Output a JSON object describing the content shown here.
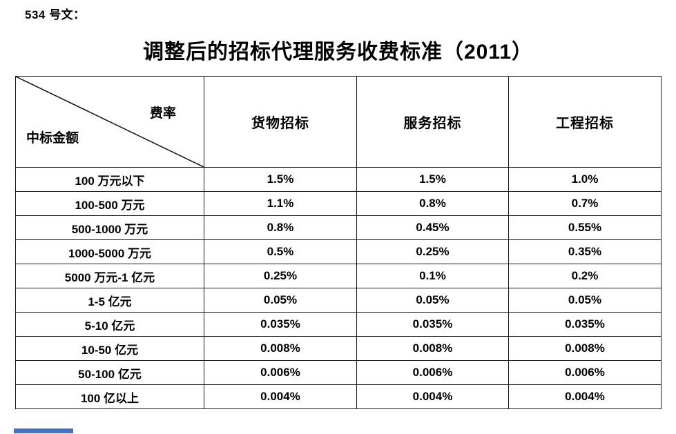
{
  "document": {
    "doc_number_label": "534 号文：",
    "title": "调整后的招标代理服务收费标准（2011）"
  },
  "table": {
    "corner": {
      "top_right": "费率",
      "bottom_left": "中标金额"
    },
    "columns": [
      "货物招标",
      "服务招标",
      "工程招标"
    ],
    "rows": [
      {
        "amount": "100 万元以下",
        "values": [
          "1.5%",
          "1.5%",
          "1.0%"
        ]
      },
      {
        "amount": "100-500 万元",
        "values": [
          "1.1%",
          "0.8%",
          "0.7%"
        ]
      },
      {
        "amount": "500-1000 万元",
        "values": [
          "0.8%",
          "0.45%",
          "0.55%"
        ]
      },
      {
        "amount": "1000-5000 万元",
        "values": [
          "0.5%",
          "0.25%",
          "0.35%"
        ]
      },
      {
        "amount": "5000 万元-1 亿元",
        "values": [
          "0.25%",
          "0.1%",
          "0.2%"
        ]
      },
      {
        "amount": "1-5 亿元",
        "values": [
          "0.05%",
          "0.05%",
          "0.05%"
        ]
      },
      {
        "amount": "5-10 亿元",
        "values": [
          "0.035%",
          "0.035%",
          "0.035%"
        ]
      },
      {
        "amount": "10-50 亿元",
        "values": [
          "0.008%",
          "0.008%",
          "0.008%"
        ]
      },
      {
        "amount": "50-100 亿元",
        "values": [
          "0.006%",
          "0.006%",
          "0.006%"
        ]
      },
      {
        "amount": "100 亿以上",
        "values": [
          "0.004%",
          "0.004%",
          "0.004%"
        ]
      }
    ]
  },
  "decorations": {
    "marker_color": "#4472C4",
    "border_color": "#1a1a1a"
  }
}
